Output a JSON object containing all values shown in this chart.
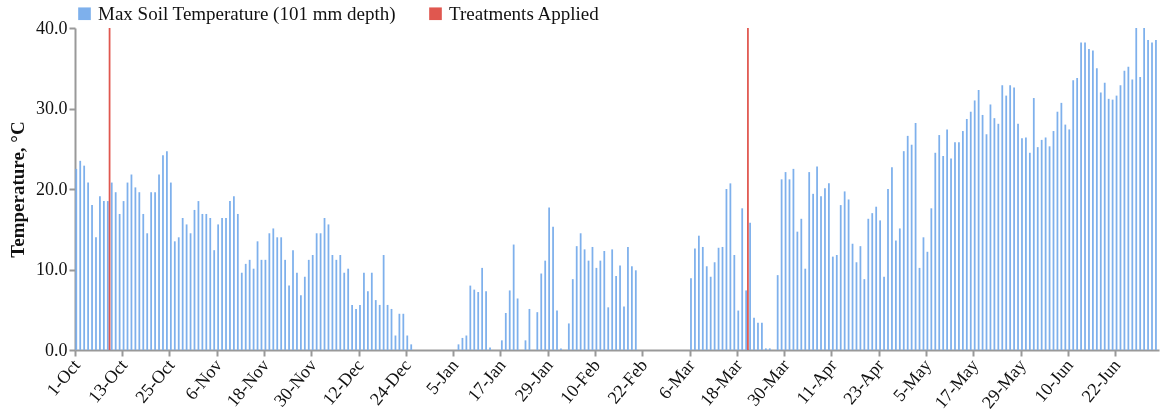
{
  "chart_data": {
    "type": "bar",
    "ylabel": "Temperature, °C",
    "categories": [
      "1-Oct",
      null,
      null,
      null,
      null,
      null,
      null,
      null,
      null,
      null,
      null,
      null,
      "13-Oct",
      null,
      null,
      null,
      null,
      null,
      null,
      null,
      null,
      null,
      null,
      null,
      "25-Oct",
      null,
      null,
      null,
      null,
      null,
      null,
      null,
      null,
      null,
      null,
      null,
      "6-Nov",
      null,
      null,
      null,
      null,
      null,
      null,
      null,
      null,
      null,
      null,
      null,
      "18-Nov",
      null,
      null,
      null,
      null,
      null,
      null,
      null,
      null,
      null,
      null,
      null,
      "30-Nov",
      null,
      null,
      null,
      null,
      null,
      null,
      null,
      null,
      null,
      null,
      null,
      "12-Dec",
      null,
      null,
      null,
      null,
      null,
      null,
      null,
      null,
      null,
      null,
      null,
      "24-Dec",
      null,
      null,
      null,
      null,
      null,
      null,
      null,
      null,
      null,
      null,
      null,
      "5-Jan",
      null,
      null,
      null,
      null,
      null,
      null,
      null,
      null,
      null,
      null,
      null,
      "17-Jan",
      null,
      null,
      null,
      null,
      null,
      null,
      null,
      null,
      null,
      null,
      null,
      "29-Jan",
      null,
      null,
      null,
      null,
      null,
      null,
      null,
      null,
      null,
      null,
      null,
      "10-Feb",
      null,
      null,
      null,
      null,
      null,
      null,
      null,
      null,
      null,
      null,
      null,
      "22-Feb",
      null,
      null,
      null,
      null,
      null,
      null,
      null,
      null,
      null,
      null,
      null,
      "6-Mar",
      null,
      null,
      null,
      null,
      null,
      null,
      null,
      null,
      null,
      null,
      null,
      "18-Mar",
      null,
      null,
      null,
      null,
      null,
      null,
      null,
      null,
      null,
      null,
      null,
      "30-Mar",
      null,
      null,
      null,
      null,
      null,
      null,
      null,
      null,
      null,
      null,
      null,
      "11-Apr",
      null,
      null,
      null,
      null,
      null,
      null,
      null,
      null,
      null,
      null,
      null,
      "23-Apr",
      null,
      null,
      null,
      null,
      null,
      null,
      null,
      null,
      null,
      null,
      null,
      "5-May",
      null,
      null,
      null,
      null,
      null,
      null,
      null,
      null,
      null,
      null,
      null,
      "17-May",
      null,
      null,
      null,
      null,
      null,
      null,
      null,
      null,
      null,
      null,
      null,
      "29-May",
      null,
      null,
      null,
      null,
      null,
      null,
      null,
      null,
      null,
      null,
      null,
      "10-Jun",
      null,
      null,
      null,
      null,
      null,
      null,
      null,
      null,
      null,
      null,
      null,
      "22-Jun",
      null,
      null,
      null,
      null,
      null,
      null,
      null,
      null,
      null,
      null
    ],
    "series": [
      {
        "name": "Max Soil Temperature (101 mm depth)",
        "color": "#7eb0ec",
        "values": [
          22.5,
          23.5,
          22.9,
          20.8,
          18.0,
          14.0,
          19.1,
          18.5,
          18.5,
          20.8,
          19.6,
          16.9,
          18.5,
          20.8,
          21.8,
          20.2,
          19.6,
          16.9,
          14.5,
          19.6,
          19.6,
          21.8,
          24.2,
          24.7,
          20.8,
          13.5,
          14.0,
          16.4,
          15.6,
          14.5,
          17.4,
          18.5,
          16.9,
          16.9,
          16.4,
          12.4,
          15.6,
          16.4,
          16.4,
          18.5,
          19.1,
          16.9,
          9.6,
          10.7,
          11.2,
          10.1,
          13.5,
          11.2,
          11.2,
          14.5,
          15.1,
          14.0,
          14.0,
          11.2,
          8.0,
          12.4,
          9.6,
          6.8,
          9.1,
          11.2,
          11.8,
          14.5,
          14.5,
          16.4,
          15.6,
          11.8,
          11.2,
          11.8,
          9.6,
          10.1,
          5.6,
          5.1,
          5.6,
          9.6,
          7.3,
          9.6,
          6.2,
          5.6,
          11.8,
          5.6,
          5.1,
          1.8,
          4.5,
          4.5,
          1.8,
          0.7,
          0,
          0,
          0,
          0,
          0,
          0,
          0,
          0,
          0,
          0,
          0,
          0.7,
          1.5,
          1.8,
          8.0,
          7.5,
          7.2,
          10.2,
          7.3,
          0.3,
          0,
          0,
          1.2,
          4.6,
          7.4,
          13.1,
          6.4,
          0,
          1.2,
          5.1,
          0,
          4.7,
          9.5,
          11.1,
          17.7,
          15.3,
          4.9,
          0.2,
          0,
          3.3,
          8.8,
          12.9,
          14.5,
          12.5,
          11.1,
          12.8,
          10.2,
          11.1,
          12.3,
          5.3,
          12.5,
          9.2,
          10.5,
          5.4,
          12.8,
          10.4,
          9.9,
          0,
          0,
          0,
          0,
          0,
          0,
          0,
          0,
          0,
          0,
          0,
          0,
          0,
          8.9,
          12.6,
          14.2,
          12.8,
          10.4,
          9.1,
          10.9,
          12.7,
          12.8,
          20.0,
          20.7,
          11.8,
          4.9,
          17.6,
          7.4,
          15.8,
          4.0,
          3.4,
          3.4,
          0.2,
          0.2,
          0,
          9.3,
          21.2,
          22.1,
          21.2,
          22.5,
          14.7,
          16.3,
          10.1,
          22.1,
          19.4,
          22.8,
          19.1,
          20.1,
          20.7,
          11.6,
          11.8,
          18.0,
          19.7,
          18.7,
          13.2,
          10.9,
          12.9,
          8.8,
          16.3,
          17.0,
          17.8,
          16.1,
          9.1,
          20.0,
          22.7,
          13.6,
          15.1,
          24.7,
          26.6,
          25.5,
          28.2,
          10.2,
          14.0,
          12.2,
          17.6,
          24.5,
          26.7,
          24.1,
          27.4,
          23.8,
          25.8,
          25.8,
          27.2,
          28.7,
          29.6,
          31.0,
          32.3,
          29.2,
          26.8,
          30.5,
          28.8,
          28.1,
          32.9,
          31.6,
          32.9,
          32.6,
          28.1,
          26.3,
          26.4,
          24.5,
          31.3,
          25.2,
          26.1,
          26.4,
          25.3,
          27.2,
          29.6,
          30.7,
          28.0,
          27.4,
          33.5,
          33.8,
          38.2,
          38.2,
          37.4,
          37.2,
          35.0,
          32.0,
          33.2,
          31.2,
          31.1,
          31.6,
          32.9,
          34.7,
          35.2,
          33.6,
          40.0,
          33.9,
          40.0,
          38.5,
          38.2,
          38.5
        ]
      },
      {
        "name": "Treatments Applied",
        "color": "#e0574f",
        "values": [
          null,
          null,
          null,
          null,
          null,
          null,
          null,
          null,
          40,
          null,
          null,
          null,
          null,
          null,
          null,
          null,
          null,
          null,
          null,
          null,
          null,
          null,
          null,
          null,
          null,
          null,
          null,
          null,
          null,
          null,
          null,
          null,
          null,
          null,
          null,
          null,
          null,
          null,
          null,
          null,
          null,
          null,
          null,
          null,
          null,
          null,
          null,
          null,
          null,
          null,
          null,
          null,
          null,
          null,
          null,
          null,
          null,
          null,
          null,
          null,
          null,
          null,
          null,
          null,
          null,
          null,
          null,
          null,
          null,
          null,
          null,
          null,
          null,
          null,
          null,
          null,
          null,
          null,
          null,
          null,
          null,
          null,
          null,
          null,
          null,
          null,
          null,
          null,
          null,
          null,
          null,
          null,
          null,
          null,
          null,
          null,
          null,
          null,
          null,
          null,
          null,
          null,
          null,
          null,
          null,
          null,
          null,
          null,
          null,
          null,
          null,
          null,
          null,
          null,
          null,
          null,
          null,
          null,
          null,
          null,
          null,
          null,
          null,
          null,
          null,
          null,
          null,
          null,
          null,
          null,
          null,
          null,
          null,
          null,
          null,
          null,
          null,
          null,
          null,
          null,
          null,
          null,
          null,
          null,
          null,
          null,
          null,
          null,
          null,
          null,
          null,
          null,
          null,
          null,
          null,
          null,
          null,
          null,
          null,
          null,
          null,
          null,
          null,
          null,
          null,
          null,
          null,
          null,
          null,
          null,
          40,
          null,
          null,
          null,
          null,
          null,
          null,
          null,
          null,
          null,
          null,
          null,
          null,
          null,
          null,
          null,
          null,
          null,
          null,
          null,
          null,
          null,
          null,
          null,
          null,
          null,
          null,
          null,
          null,
          null,
          null,
          null,
          null,
          null,
          null,
          null,
          null,
          null,
          null,
          null,
          null,
          null,
          null,
          null,
          null,
          null,
          null,
          null,
          null,
          null,
          null,
          null,
          null,
          null,
          null,
          null,
          null,
          null,
          null,
          null,
          null,
          null,
          null,
          null,
          null,
          null,
          null,
          null,
          null,
          null,
          null,
          null,
          null,
          null,
          null,
          null,
          null,
          null,
          null,
          null,
          null,
          null,
          null,
          null,
          null,
          null,
          null,
          null,
          null,
          null,
          null,
          null,
          null,
          null,
          null,
          null,
          null,
          null,
          null,
          null,
          null,
          null,
          null,
          null,
          null
        ]
      }
    ],
    "ylim": [
      0,
      40
    ],
    "yticks": [
      {
        "value": 0,
        "label": "0.0"
      },
      {
        "value": 10,
        "label": "10.0"
      },
      {
        "value": 20,
        "label": "20.0"
      },
      {
        "value": 30,
        "label": "30.0"
      },
      {
        "value": 40,
        "label": "40.0"
      }
    ],
    "legend": "top"
  }
}
